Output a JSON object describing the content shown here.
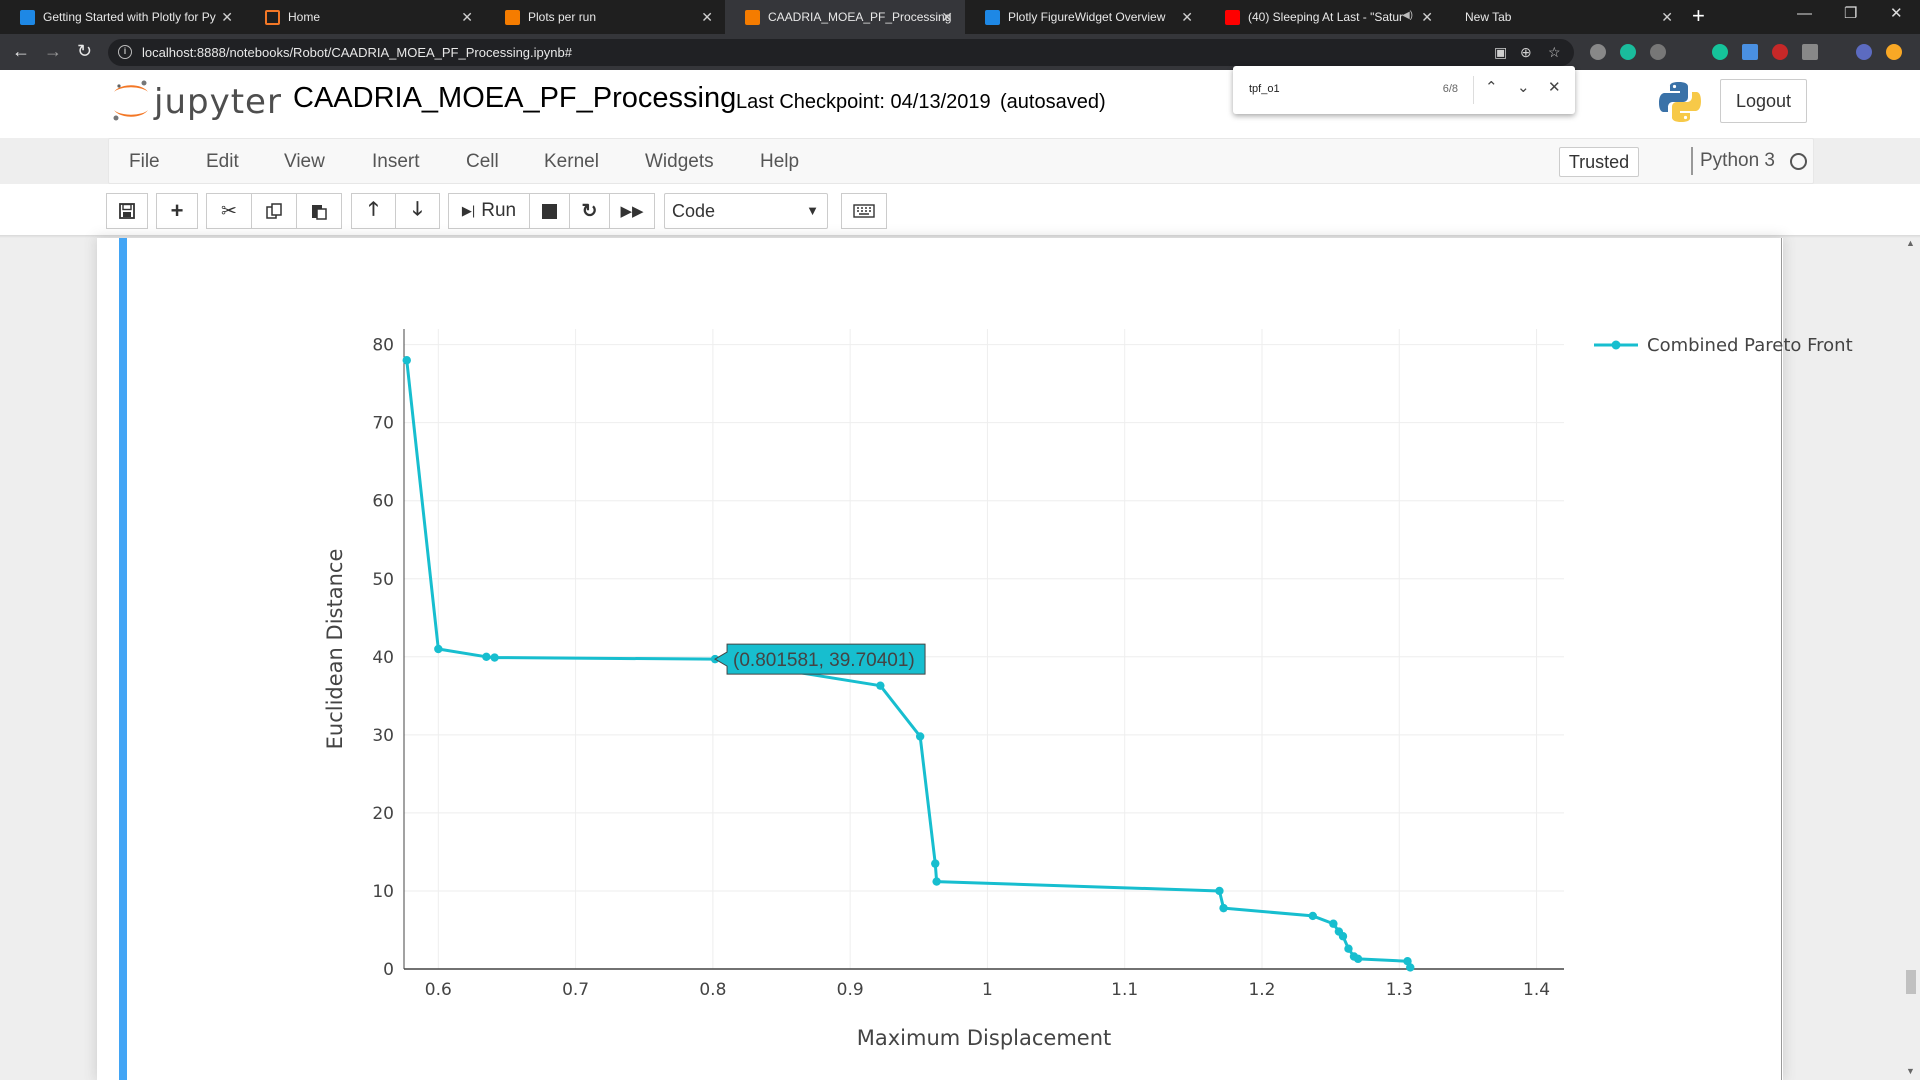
{
  "browser": {
    "tabs": [
      {
        "title": "Getting Started with Plotly for Py",
        "icon": "plotly-icon",
        "active": false
      },
      {
        "title": "Home",
        "icon": "jupyter-icon",
        "active": false
      },
      {
        "title": "Plots per run",
        "icon": "notebook-icon",
        "active": false
      },
      {
        "title": "CAADRIA_MOEA_PF_Processing",
        "icon": "notebook-icon",
        "active": true
      },
      {
        "title": "Plotly FigureWidget Overview",
        "icon": "plotly-icon",
        "active": false
      },
      {
        "title": "(40) Sleeping At Last - \"Satur",
        "icon": "youtube-icon",
        "active": false
      },
      {
        "title": "New Tab",
        "icon": "",
        "active": false
      }
    ],
    "url": "localhost:8888/notebooks/Robot/CAADRIA_MOEA_PF_Processing.ipynb#",
    "find": {
      "query": "tpf_o1",
      "count": "6/8"
    }
  },
  "jupyter": {
    "logo_text": "jupyter",
    "notebook_name": "CAADRIA_MOEA_PF_Processing",
    "checkpoint": "Last Checkpoint: 04/13/2019",
    "autosave": "(autosaved)",
    "logout": "Logout",
    "menu": [
      "File",
      "Edit",
      "View",
      "Insert",
      "Cell",
      "Kernel",
      "Widgets",
      "Help"
    ],
    "trusted": "Trusted",
    "kernel": "Python 3",
    "toolbar": {
      "run_label": "Run",
      "cell_type": "Code"
    }
  },
  "chart_data": {
    "type": "line",
    "title": "",
    "xlabel": "Maximum Displacement",
    "ylabel": "Euclidean Distance",
    "xlim": [
      0.575,
      1.42
    ],
    "ylim": [
      0,
      82
    ],
    "xticks": [
      "0.6",
      "0.7",
      "0.8",
      "0.9",
      "1",
      "1.1",
      "1.2",
      "1.3",
      "1.4"
    ],
    "yticks": [
      "0",
      "10",
      "20",
      "30",
      "40",
      "50",
      "60",
      "70",
      "80"
    ],
    "grid": true,
    "legend_position": "top-right",
    "series": [
      {
        "name": "Combined Pareto Front",
        "color": "#17becf",
        "x": [
          0.577,
          0.6,
          0.635,
          0.641,
          0.801581,
          0.922,
          0.951,
          0.962,
          0.963,
          1.169,
          1.172,
          1.237,
          1.252,
          1.256,
          1.259,
          1.263,
          1.267,
          1.27,
          1.306,
          1.308
        ],
        "y": [
          78.0,
          41.0,
          40.0,
          39.9,
          39.70401,
          36.3,
          29.8,
          13.5,
          11.2,
          10.0,
          7.8,
          6.8,
          5.8,
          4.8,
          4.2,
          2.6,
          1.6,
          1.3,
          1.0,
          0.2
        ]
      }
    ],
    "hover": {
      "text": "(0.801581, 39.70401)",
      "point_index": 4
    }
  }
}
